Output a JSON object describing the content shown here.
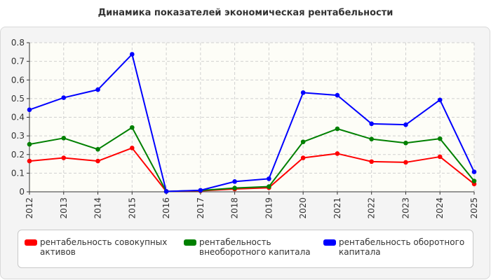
{
  "chart_data": {
    "type": "line",
    "title": "Динамика показателей экономическая рентабельности",
    "xlabel": "",
    "ylabel": "",
    "categories": [
      "2012",
      "2013",
      "2014",
      "2015",
      "2016",
      "2017",
      "2018",
      "2019",
      "2020",
      "2021",
      "2022",
      "2023",
      "2024",
      "2025"
    ],
    "ylim": [
      0,
      0.8
    ],
    "yticks": [
      "0",
      "0.1",
      "0.2",
      "0.3",
      "0.4",
      "0.5",
      "0.6",
      "0.7",
      "0.8"
    ],
    "grid": true,
    "legend_position": "bottom",
    "series": [
      {
        "name": "рентабельность совокупных активов",
        "color": "#ff0000",
        "values": [
          0.165,
          0.182,
          0.165,
          0.235,
          0.002,
          0.005,
          0.015,
          0.022,
          0.182,
          0.205,
          0.162,
          0.158,
          0.188,
          0.042
        ]
      },
      {
        "name": "рентабельность внеоборотного капитала",
        "color": "#008000",
        "values": [
          0.255,
          0.288,
          0.228,
          0.345,
          0.002,
          0.007,
          0.02,
          0.028,
          0.268,
          0.338,
          0.283,
          0.262,
          0.285,
          0.058
        ]
      },
      {
        "name": "рентабельность оборотного капитала",
        "color": "#0000ff",
        "values": [
          0.44,
          0.505,
          0.548,
          0.738,
          0.002,
          0.008,
          0.055,
          0.07,
          0.532,
          0.518,
          0.365,
          0.36,
          0.493,
          0.107
        ]
      }
    ]
  }
}
